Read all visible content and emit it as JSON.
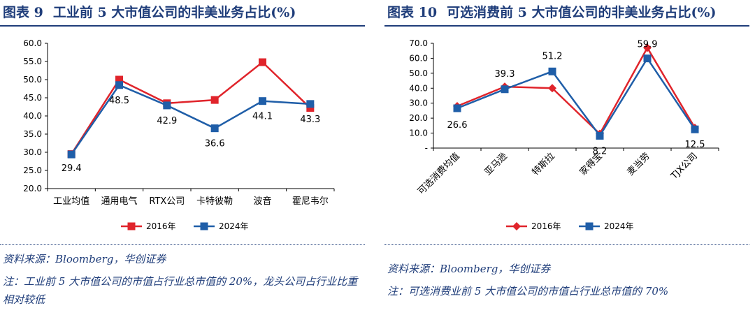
{
  "left": {
    "figure_no": "图表 9",
    "title": "工业前 5 大市值公司的非美业务占比(%)",
    "source": "资料来源：Bloomberg，华创证券",
    "note": "注：工业前 5 大市值公司的市值占行业总市值的 20%，龙头公司占行业比重相对较低"
  },
  "right": {
    "figure_no": "图表 10",
    "title": "可选消费前 5 大市值公司的非美业务占比(%)",
    "source": "资料来源：Bloomberg，华创证券",
    "note": "注：可选消费业前 5 大市值公司的市值占行业总市值的 70%"
  },
  "colors": {
    "s2016": "#e0242b",
    "s2024": "#1f5ea8",
    "title": "#1f3d7a"
  },
  "chart_data": [
    {
      "type": "line",
      "categories": [
        "工业均值",
        "通用电气",
        "RTX公司",
        "卡特彼勒",
        "波音",
        "霍尼韦尔"
      ],
      "series": [
        {
          "name": "2016年",
          "values": [
            29.5,
            50.0,
            43.5,
            44.4,
            54.8,
            42.2
          ],
          "marker": "square"
        },
        {
          "name": "2024年",
          "values": [
            29.4,
            48.5,
            42.9,
            36.6,
            44.1,
            43.3
          ],
          "marker": "square"
        }
      ],
      "data_labels": [
        "29.4",
        "48.5",
        "42.9",
        "36.6",
        "44.1",
        "43.3"
      ],
      "yticks": [
        "20.0",
        "25.0",
        "30.0",
        "35.0",
        "40.0",
        "45.0",
        "50.0",
        "55.0",
        "60.0"
      ],
      "ylim": [
        20,
        60
      ],
      "legend_position": "bottom"
    },
    {
      "type": "line",
      "categories": [
        "可选消费均值",
        "亚马逊",
        "特斯拉",
        "家得宝",
        "麦当劳",
        "TJX公司"
      ],
      "series": [
        {
          "name": "2016年",
          "values": [
            28.0,
            41.0,
            40.0,
            9.5,
            67.0,
            13.5
          ],
          "marker": "diamond"
        },
        {
          "name": "2024年",
          "values": [
            26.6,
            39.3,
            51.2,
            8.2,
            59.9,
            12.5
          ],
          "marker": "square"
        }
      ],
      "data_labels": [
        "26.6",
        "39.3",
        "51.2",
        "8.2",
        "59.9",
        "12.5"
      ],
      "yticks": [
        "-",
        "10.0",
        "20.0",
        "30.0",
        "40.0",
        "50.0",
        "60.0",
        "70.0"
      ],
      "ylim": [
        0,
        70
      ],
      "legend_position": "bottom"
    }
  ]
}
